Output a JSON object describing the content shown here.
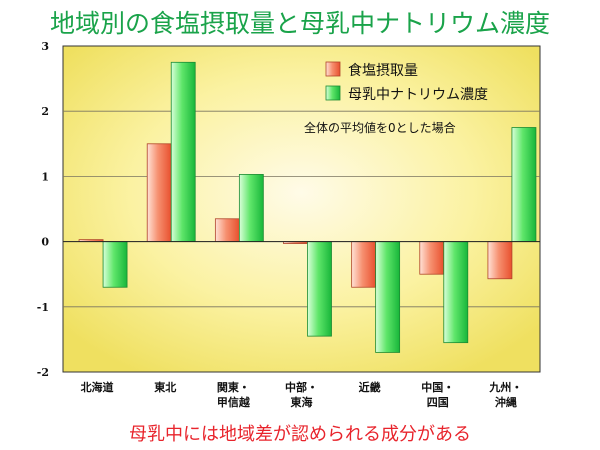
{
  "title": "地域別の食塩摂取量と母乳中ナトリウム濃度",
  "caption": "母乳中には地域差が認められる成分がある",
  "chart_data": {
    "type": "bar",
    "categories": [
      [
        "北海道"
      ],
      [
        "東北"
      ],
      [
        "関東・",
        "甲信越"
      ],
      [
        "中部・",
        "東海"
      ],
      [
        "近畿"
      ],
      [
        "中国・",
        "四国"
      ],
      [
        "九州・",
        "沖縄"
      ]
    ],
    "series": [
      {
        "name": "食塩摂取量",
        "color": "#f06a4a",
        "values": [
          0.03,
          1.5,
          0.35,
          -0.03,
          -0.7,
          -0.5,
          -0.57
        ]
      },
      {
        "name": "母乳中ナトリウム濃度",
        "color": "#2fd04a",
        "values": [
          -0.7,
          2.75,
          1.03,
          -1.45,
          -1.7,
          -1.55,
          1.75
        ]
      }
    ],
    "ylim": [
      -2,
      3
    ],
    "yticks": [
      "3",
      "2",
      "1",
      "0",
      "-1",
      "-2"
    ],
    "annotation": "全体の平均値を0とした場合",
    "legend_position": "top-right",
    "grid": true
  }
}
